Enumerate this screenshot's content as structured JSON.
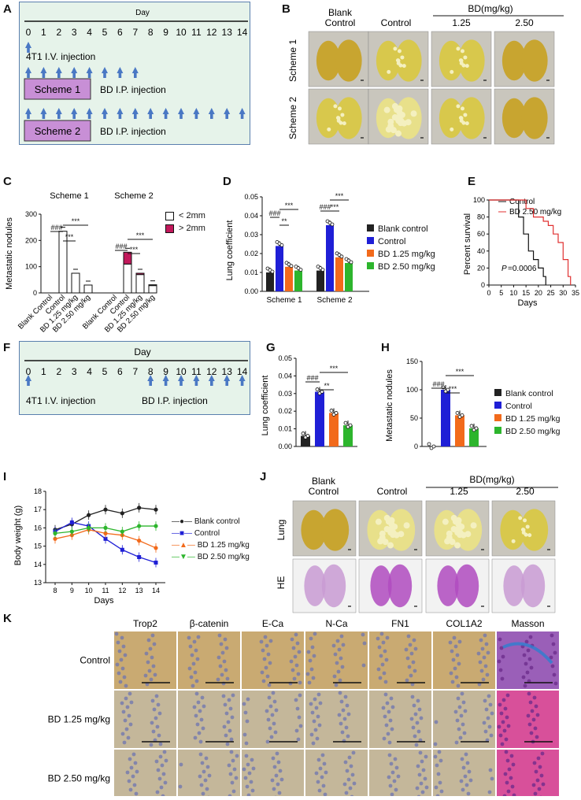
{
  "panel_labels": [
    "A",
    "B",
    "C",
    "D",
    "E",
    "F",
    "G",
    "H",
    "I",
    "J",
    "K"
  ],
  "panelA": {
    "day_title": "Day",
    "days": [
      "0",
      "1",
      "2",
      "3",
      "4",
      "5",
      "6",
      "7",
      "8",
      "9",
      "10",
      "11",
      "12",
      "13",
      "14"
    ],
    "injection_4t1": "4T1  I.V. injection",
    "scheme1": "Scheme 1",
    "scheme2": "Scheme 2",
    "bd_ip": "BD  I.P. injection"
  },
  "panelB": {
    "group_header": "BD(mg/kg)",
    "cols": [
      "Blank\nControl",
      "Control",
      "1.25",
      "2.50"
    ],
    "col_blank_1": "Blank",
    "col_blank_2": "Control",
    "col_control": "Control",
    "col_bd1": "1.25",
    "col_bd2": "2.50",
    "row1": "Scheme 1",
    "row2": "Scheme 2"
  },
  "panelC": {
    "ylabel": "Metastatic nodules",
    "scheme1": "Scheme 1",
    "scheme2": "Scheme 2",
    "legend": [
      "< 2mm",
      "> 2mm"
    ],
    "xticks": [
      "Blank Control",
      "Control",
      "BD 1.25 mg/kg",
      "BD 2.50 mg/kg",
      "Blank Control",
      "Control",
      "BD 1.25 mg/kg",
      "BD 2.50 mg/kg"
    ],
    "sig1": "###",
    "sig2": "***",
    "sig3": "***",
    "yticks": [
      "0",
      "100",
      "200",
      "300"
    ]
  },
  "panelD": {
    "ylabel": "Lung coefficient",
    "yticks": [
      "0.00",
      "0.01",
      "0.02",
      "0.03",
      "0.04",
      "0.05"
    ],
    "groups": [
      "Scheme 1",
      "Scheme 2"
    ],
    "legend": [
      "Blank control",
      "Control",
      "BD 1.25 mg/kg",
      "BD 2.50 mg/kg"
    ],
    "sig_hash": "###",
    "sig_2": "**",
    "sig_3": "***"
  },
  "panelE": {
    "ylabel": "Percent survival",
    "xlabel": "Days",
    "yticks": [
      "0",
      "20",
      "40",
      "60",
      "80",
      "100"
    ],
    "xticks": [
      "0",
      "5",
      "10",
      "15",
      "20",
      "25",
      "30",
      "35"
    ],
    "legend": [
      "Control",
      "BD 2.50 mg/kg"
    ],
    "pval": "=0.0006",
    "p": "P"
  },
  "panelF": {
    "day_title": "Day",
    "days": [
      "0",
      "1",
      "2",
      "3",
      "4",
      "5",
      "6",
      "7",
      "8",
      "9",
      "10",
      "11",
      "12",
      "13",
      "14"
    ],
    "injection_4t1": "4T1  I.V. injection",
    "bd_ip": "BD  I.P. injection"
  },
  "panelG": {
    "ylabel": "Lung coefficient",
    "yticks": [
      "0.00",
      "0.01",
      "0.02",
      "0.03",
      "0.04",
      "0.05"
    ],
    "sig_hash": "###",
    "sig_2": "**",
    "sig_3": "***"
  },
  "panelH": {
    "ylabel": "Metastatic nodules",
    "yticks": [
      "0",
      "50",
      "100",
      "150"
    ],
    "legend": [
      "Blank control",
      "Control",
      "BD 1.25 mg/kg",
      "BD 2.50 mg/kg"
    ],
    "sig_hash": "###",
    "sig_3a": "***",
    "sig_3b": "***"
  },
  "panelI": {
    "ylabel": "Body weight (g)",
    "xlabel": "Days",
    "legend": [
      "Blank control",
      "Control",
      "BD 1.25 mg/kg",
      "BD 2.50 mg/kg"
    ],
    "yticks": [
      "13",
      "14",
      "15",
      "16",
      "17",
      "18"
    ],
    "xticks": [
      "8",
      "9",
      "10",
      "11",
      "12",
      "13",
      "14"
    ]
  },
  "panelJ": {
    "group_header": "BD(mg/kg)",
    "col_blank_1": "Blank",
    "col_blank_2": "Control",
    "col_control": "Control",
    "col_bd1": "1.25",
    "col_bd2": "2.50",
    "row1": "Lung",
    "row2": "HE"
  },
  "panelK": {
    "cols": [
      "Trop2",
      "β-catenin",
      "E-Ca",
      "N-Ca",
      "FN1",
      "COL1A2",
      "Masson"
    ],
    "rows": [
      "Control",
      "BD 1.25 mg/kg",
      "BD 2.50 mg/kg"
    ]
  },
  "colors": {
    "blank": "#222222",
    "control": "#1f1fd6",
    "bd125": "#f26a1b",
    "bd250": "#2db52d",
    "crimson": "#c2185b",
    "red": "#e03030",
    "timeline_bg": "#e6f3ea",
    "scheme_box": "#c88fd6",
    "arrow": "#4a78c4"
  },
  "chart_data": [
    {
      "panel": "C",
      "type": "bar",
      "categories": [
        "Blank Control",
        "Control",
        "BD 1.25 mg/kg",
        "BD 2.50 mg/kg"
      ],
      "series": [
        {
          "name": "< 2mm",
          "scheme1": [
            0,
            235,
            75,
            30
          ],
          "scheme2": [
            0,
            110,
            70,
            28
          ]
        },
        {
          "name": "> 2mm",
          "scheme1": [
            0,
            0,
            0,
            0
          ],
          "scheme2": [
            0,
            45,
            5,
            3
          ]
        }
      ],
      "ylim": [
        0,
        300
      ]
    },
    {
      "panel": "D",
      "type": "bar",
      "categories": [
        "Scheme 1",
        "Scheme 2"
      ],
      "series": [
        {
          "name": "Blank control",
          "values": [
            0.01,
            0.011
          ]
        },
        {
          "name": "Control",
          "values": [
            0.024,
            0.035
          ]
        },
        {
          "name": "BD 1.25 mg/kg",
          "values": [
            0.013,
            0.018
          ]
        },
        {
          "name": "BD 2.50 mg/kg",
          "values": [
            0.011,
            0.015
          ]
        }
      ],
      "ylim": [
        0,
        0.05
      ]
    },
    {
      "panel": "E",
      "type": "line",
      "series": [
        {
          "name": "Control",
          "x": [
            0,
            10,
            12,
            14,
            16,
            18,
            20,
            22,
            23
          ],
          "y": [
            100,
            100,
            80,
            60,
            40,
            30,
            20,
            10,
            0
          ]
        },
        {
          "name": "BD 2.50 mg/kg",
          "x": [
            0,
            12,
            15,
            18,
            22,
            24,
            26,
            28,
            30,
            32,
            33
          ],
          "y": [
            100,
            100,
            90,
            80,
            75,
            70,
            60,
            50,
            30,
            10,
            0
          ]
        }
      ],
      "xlim": [
        0,
        35
      ],
      "ylim": [
        0,
        100
      ]
    },
    {
      "panel": "G",
      "type": "bar",
      "categories": [
        "Blank control",
        "Control",
        "BD 1.25 mg/kg",
        "BD 2.50 mg/kg"
      ],
      "values": [
        0.006,
        0.031,
        0.019,
        0.012
      ],
      "ylim": [
        0,
        0.05
      ]
    },
    {
      "panel": "H",
      "type": "bar",
      "categories": [
        "Blank control",
        "Control",
        "BD 1.25 mg/kg",
        "BD 2.50 mg/kg"
      ],
      "values": [
        0,
        100,
        55,
        32
      ],
      "ylim": [
        0,
        150
      ]
    },
    {
      "panel": "I",
      "type": "line",
      "x": [
        8,
        9,
        10,
        11,
        12,
        13,
        14
      ],
      "series": [
        {
          "name": "Blank control",
          "values": [
            15.9,
            16.2,
            16.7,
            17.0,
            16.8,
            17.1,
            17.0
          ]
        },
        {
          "name": "Control",
          "values": [
            15.8,
            16.3,
            16.1,
            15.4,
            14.8,
            14.4,
            14.1
          ]
        },
        {
          "name": "BD 1.25 mg/kg",
          "values": [
            15.4,
            15.6,
            15.9,
            15.7,
            15.6,
            15.3,
            14.9
          ]
        },
        {
          "name": "BD 2.50 mg/kg",
          "values": [
            15.7,
            15.8,
            16.0,
            16.0,
            15.8,
            16.1,
            16.1
          ]
        }
      ],
      "ylim": [
        13,
        18
      ]
    }
  ]
}
